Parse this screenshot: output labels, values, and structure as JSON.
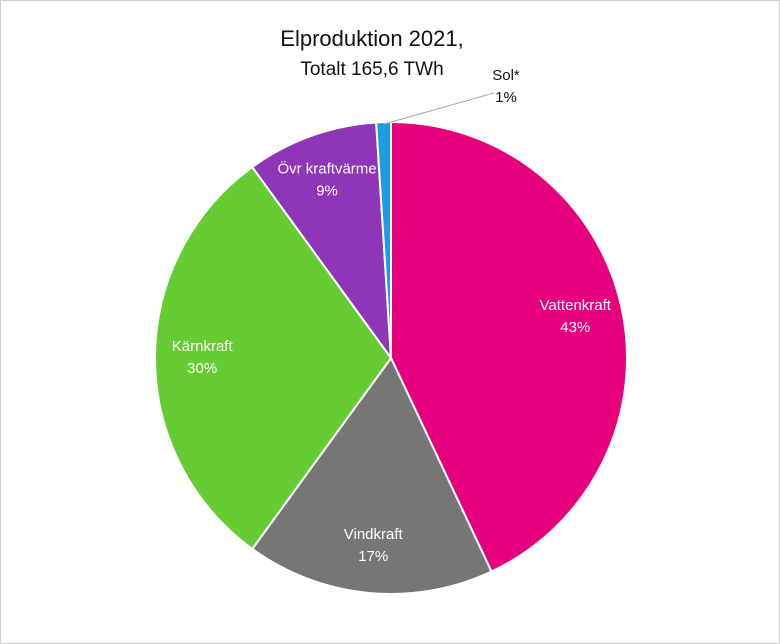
{
  "chart_data": {
    "type": "pie",
    "title": "Elproduktion 2021,",
    "subtitle": "Totalt 165,6 TWh",
    "categories": [
      "Vattenkraft",
      "Vindkraft",
      "Kärnkraft",
      "Övr kraftvärme",
      "Sol*"
    ],
    "values": [
      43,
      17,
      30,
      9,
      1
    ],
    "value_labels": [
      "43%",
      "17%",
      "30%",
      "9%",
      "1%"
    ],
    "colors": [
      "#e6007e",
      "#767676",
      "#66cc33",
      "#8e35b8",
      "#1a9ee0"
    ]
  }
}
